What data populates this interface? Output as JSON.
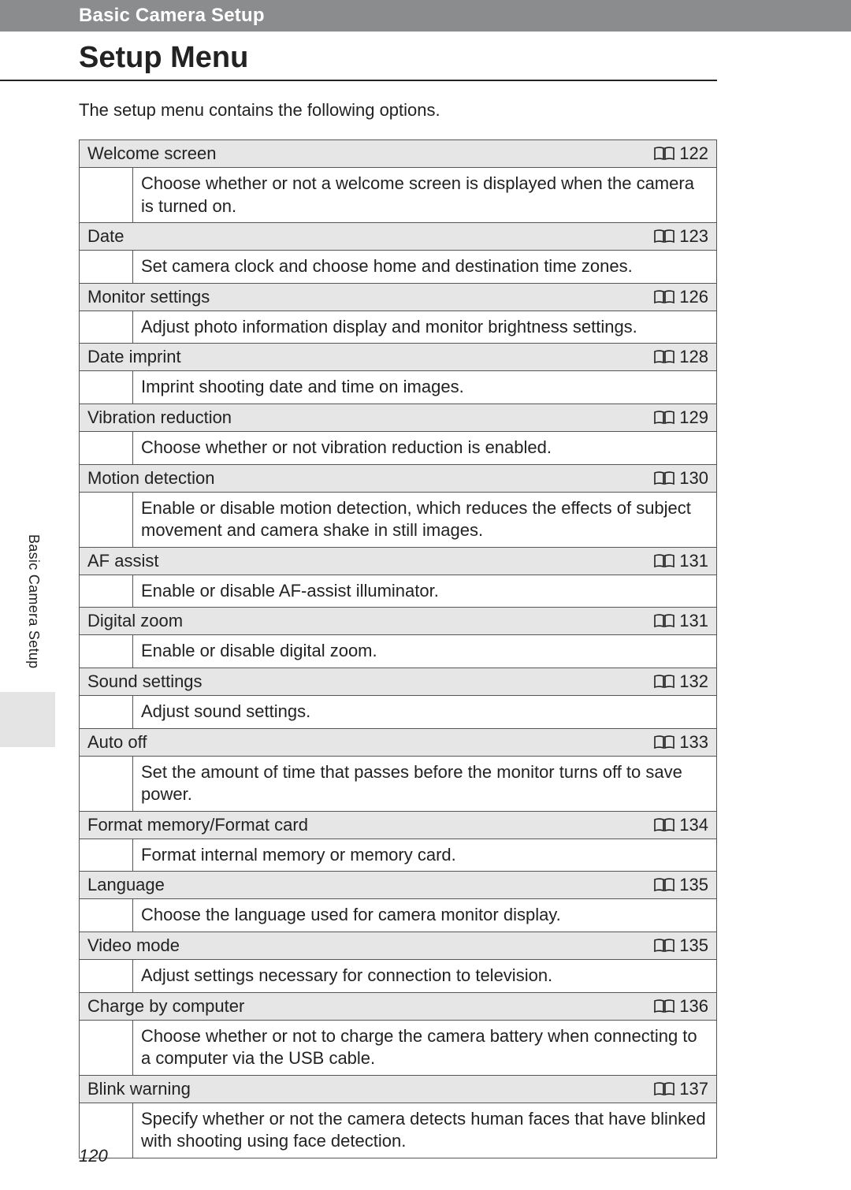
{
  "header": {
    "breadcrumb": "Basic Camera Setup",
    "title": "Setup Menu"
  },
  "intro": "The setup menu contains the following options.",
  "side_tab": "Basic Camera Setup",
  "page_number": "120",
  "colors": {
    "header_bg": "#8b8c8e",
    "row_title_bg": "#e6e6e6",
    "border": "#555555",
    "side_block_bg": "#e4e4e4",
    "text": "#222222",
    "page_bg": "#ffffff"
  },
  "icon_name": "book-page-icon",
  "items": [
    {
      "title": "Welcome screen",
      "page": "122",
      "desc": "Choose whether or not a welcome screen is displayed when the camera is turned on."
    },
    {
      "title": "Date",
      "page": "123",
      "desc": "Set camera clock and choose home and destination time zones."
    },
    {
      "title": "Monitor settings",
      "page": "126",
      "desc": "Adjust photo information display and monitor brightness settings."
    },
    {
      "title": "Date imprint",
      "page": "128",
      "desc": "Imprint shooting date and time on images."
    },
    {
      "title": "Vibration reduction",
      "page": "129",
      "desc": "Choose whether or not vibration reduction is enabled."
    },
    {
      "title": "Motion detection",
      "page": "130",
      "desc": "Enable or disable motion detection, which reduces the effects of subject movement and camera shake in still images."
    },
    {
      "title": "AF assist",
      "page": "131",
      "desc": "Enable or disable AF-assist illuminator."
    },
    {
      "title": "Digital zoom",
      "page": "131",
      "desc": "Enable or disable digital zoom."
    },
    {
      "title": "Sound settings",
      "page": "132",
      "desc": "Adjust sound settings."
    },
    {
      "title": "Auto off",
      "page": "133",
      "desc": "Set the amount of time that passes before the monitor turns off to save power."
    },
    {
      "title": "Format memory/Format card",
      "page": "134",
      "desc": "Format internal memory or memory card."
    },
    {
      "title": "Language",
      "page": "135",
      "desc": "Choose the language used for camera monitor display."
    },
    {
      "title": "Video mode",
      "page": "135",
      "desc": "Adjust settings necessary for connection to television."
    },
    {
      "title": "Charge by computer",
      "page": "136",
      "desc": "Choose whether or not to charge the camera battery when connecting to a computer via the USB cable."
    },
    {
      "title": "Blink warning",
      "page": "137",
      "desc": "Specify whether or not the camera detects human faces that have blinked with shooting using face detection."
    }
  ]
}
